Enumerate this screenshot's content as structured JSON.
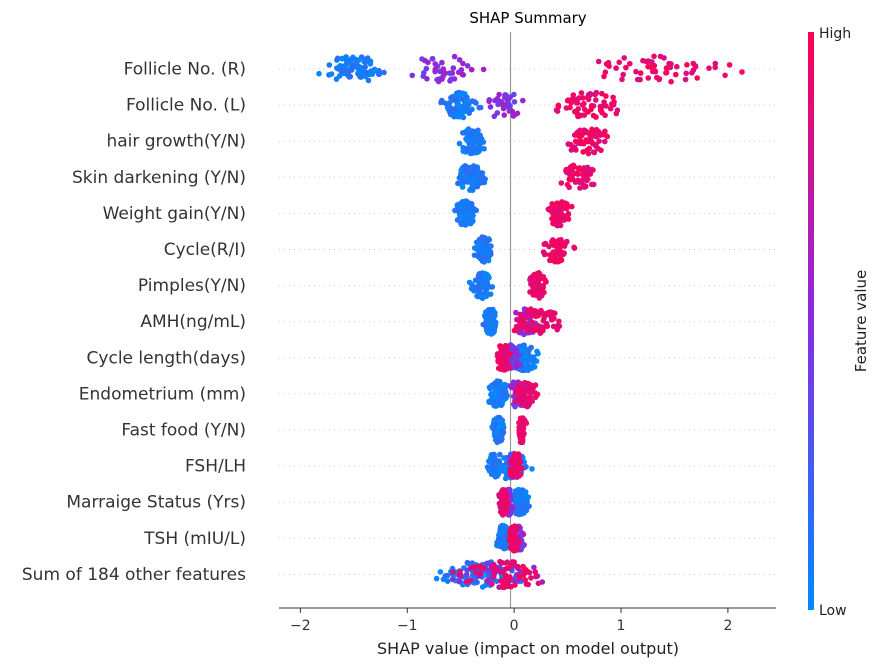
{
  "chart_data": {
    "type": "scatter",
    "title": "SHAP Summary",
    "xlabel": "SHAP value (impact on model output)",
    "xlim": [
      -2.2,
      2.45
    ],
    "xticks": [
      -2,
      -1,
      0,
      1,
      2
    ],
    "xtick_labels": [
      "−2",
      "−1",
      "0",
      "1",
      "2"
    ],
    "colorbar": {
      "label": "Feature value",
      "high_label": "High",
      "low_label": "Low",
      "low_color": "#008bfb",
      "high_color": "#ff0051"
    },
    "features": [
      {
        "name": "Follicle No. (R)",
        "low_range": [
          -2.0,
          -1.0
        ],
        "low_center": -1.5,
        "mid_range": [
          -1.2,
          -0.1
        ],
        "high_range": [
          0.05,
          2.3
        ],
        "high_center": 1.35
      },
      {
        "name": "Follicle No. (L)",
        "low_range": [
          -0.7,
          -0.2
        ],
        "low_center": -0.5,
        "mid_range": [
          -0.4,
          0.2
        ],
        "high_range": [
          0.1,
          1.1
        ],
        "high_center": 0.7
      },
      {
        "name": "hair growth(Y/N)",
        "low_range": [
          -0.6,
          -0.2
        ],
        "low_center": -0.4,
        "high_range": [
          0.4,
          1.15
        ],
        "high_center": 0.7
      },
      {
        "name": "Skin darkening (Y/N)",
        "low_range": [
          -0.6,
          -0.2
        ],
        "low_center": -0.4,
        "high_range": [
          0.4,
          0.85
        ],
        "high_center": 0.6
      },
      {
        "name": "Weight gain(Y/N)",
        "low_range": [
          -0.6,
          -0.3
        ],
        "low_center": -0.45,
        "high_range": [
          0.25,
          0.6
        ],
        "high_center": 0.42
      },
      {
        "name": "Cycle(R/I)",
        "low_range": [
          -0.4,
          -0.15
        ],
        "low_center": -0.28,
        "high_range": [
          0.2,
          0.63
        ],
        "high_center": 0.4
      },
      {
        "name": "Pimples(Y/N)",
        "low_range": [
          -0.45,
          -0.15
        ],
        "low_center": -0.3,
        "high_range": [
          0.12,
          0.35
        ],
        "high_center": 0.22
      },
      {
        "name": "AMH(ng/mL)",
        "low_range": [
          -0.3,
          -0.1
        ],
        "low_center": -0.22,
        "mid_range": [
          -0.1,
          0.3
        ],
        "high_range": [
          0.0,
          0.8
        ],
        "high_center": 0.2
      },
      {
        "name": "Cycle length(days)",
        "low_range": [
          0.0,
          0.4
        ],
        "low_center": 0.1,
        "mid_range": [
          -0.15,
          0.1
        ],
        "high_range": [
          -0.25,
          0.0
        ],
        "high_center": -0.1
      },
      {
        "name": "Endometrium (mm)",
        "low_range": [
          -0.35,
          -0.05
        ],
        "low_center": -0.15,
        "mid_range": [
          -0.1,
          0.15
        ],
        "high_range": [
          0.0,
          0.35
        ],
        "high_center": 0.12
      },
      {
        "name": "Fast food (Y/N)",
        "low_range": [
          -0.25,
          -0.08
        ],
        "low_center": -0.15,
        "high_range": [
          0.01,
          0.12
        ],
        "high_center": 0.07
      },
      {
        "name": "FSH/LH",
        "low_range": [
          -0.25,
          0.6
        ],
        "low_center": -0.1,
        "mid_range": [
          -0.1,
          0.1
        ],
        "high_range": [
          -0.05,
          0.12
        ],
        "high_center": 0.02
      },
      {
        "name": "Marraige Status (Yrs)",
        "low_range": [
          0.0,
          0.3
        ],
        "low_center": 0.05,
        "mid_range": [
          -0.1,
          0.0
        ],
        "high_range": [
          -0.2,
          -0.05
        ],
        "high_center": -0.1
      },
      {
        "name": "TSH (mIU/L)",
        "low_range": [
          -0.2,
          0.0
        ],
        "low_center": -0.1,
        "mid_range": [
          -0.05,
          0.15
        ],
        "high_range": [
          -0.05,
          0.1
        ],
        "high_center": 0.0
      },
      {
        "name": "Sum of 184 other features",
        "low_range": [
          -1.0,
          0.4
        ],
        "low_center": -0.3,
        "mid_range": [
          -0.9,
          0.6
        ],
        "high_range": [
          -0.7,
          0.65
        ],
        "high_center": -0.1
      }
    ]
  }
}
